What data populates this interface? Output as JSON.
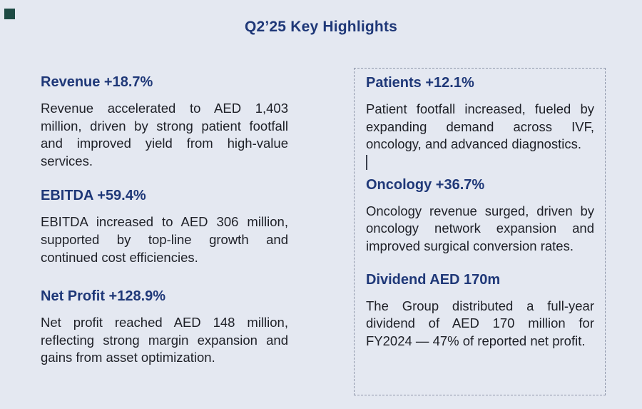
{
  "page": {
    "title": "Q2’25 Key Highlights",
    "background_color": "#e4e8f1",
    "heading_color": "#1f3878",
    "body_color": "#1e2027",
    "corner_square_color": "#1d4a44"
  },
  "left_column": {
    "blocks": [
      {
        "heading": "Revenue +18.7%",
        "body": "Revenue accelerated to AED 1,403 million, driven by strong patient footfall and improved yield from high-value services."
      },
      {
        "heading": "EBITDA +59.4%",
        "body": "EBITDA increased to AED 306 million, supported by top-line growth and continued cost efficiencies."
      },
      {
        "heading": "Net Profit +128.9%",
        "body": "Net profit reached AED 148 million, reflecting strong margin expansion and gains from asset optimization."
      }
    ]
  },
  "right_column": {
    "border_color": "#8d95a9",
    "blocks": [
      {
        "heading": "Patients +12.1%",
        "body": "Patient footfall increased, fueled by expanding demand across IVF, oncology, and advanced diagnostics."
      },
      {
        "heading": "Oncology +36.7%",
        "body": "Oncology revenue surged, driven by oncology network expansion and improved surgical conversion rates."
      },
      {
        "heading": "Dividend AED 170m",
        "body": "The Group distributed a full-year dividend of AED 170 million for FY2024 — 47% of reported net profit."
      }
    ]
  }
}
